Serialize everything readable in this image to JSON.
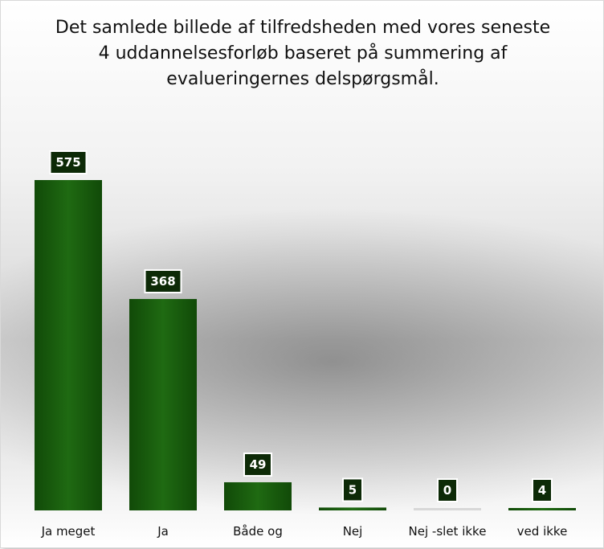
{
  "chart_data": {
    "type": "bar",
    "title": "Det samlede billede af tilfredsheden med vores seneste\n4 uddannelsesforløb    baseret på summering af\nevalueringernes delspørgsmål.",
    "categories": [
      "Ja meget",
      "Ja",
      "Både og",
      "Nej",
      "Nej -slet ikke",
      "ved ikke"
    ],
    "values": [
      575,
      368,
      49,
      5,
      0,
      4
    ],
    "xlabel": "",
    "ylabel": "",
    "ylim": [
      0,
      575
    ],
    "grid": false,
    "legend": "none",
    "colors": {
      "bar": "#1f6a12",
      "bar_dark": "#114a08",
      "label_bg": "#0d2a07"
    }
  }
}
